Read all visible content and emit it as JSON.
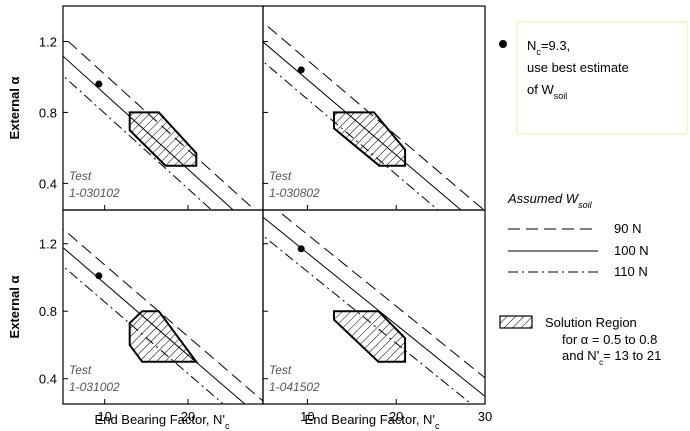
{
  "chart_data": {
    "type": "scatter",
    "axes": {
      "xlabel": "End Bearing Factor, N'",
      "xlabel_sub": "c",
      "ylabel": "External α",
      "xlim": [
        5,
        30
      ],
      "ylim": [
        0.25,
        1.4
      ],
      "xticks": [
        10,
        20,
        30
      ],
      "yticks": [
        0.4,
        0.8,
        1.2
      ],
      "xtick_labels": [
        "10",
        "20",
        "30"
      ],
      "ytick_labels": [
        "0.4",
        "0.8",
        "1.2"
      ]
    },
    "panels": [
      {
        "test_label_1": "Test",
        "test_label_2": "1-030102",
        "point": {
          "x": 9.3,
          "y": 0.96
        },
        "lines": {
          "w90": {
            "intercept": 1.44,
            "slope": -0.0425
          },
          "w100": {
            "intercept": 1.33,
            "slope": -0.0425
          },
          "w110": {
            "intercept": 1.22,
            "slope": -0.0425
          }
        },
        "region": [
          [
            13,
            0.8
          ],
          [
            16.5,
            0.8
          ],
          [
            21,
            0.57
          ],
          [
            21,
            0.5
          ],
          [
            17.3,
            0.5
          ],
          [
            13,
            0.7
          ]
        ]
      },
      {
        "test_label_1": "Test",
        "test_label_2": "1-030802",
        "point": {
          "x": 9.3,
          "y": 1.04
        },
        "lines": {
          "w90": {
            "intercept": 1.52,
            "slope": -0.0425
          },
          "w100": {
            "intercept": 1.41,
            "slope": -0.0425
          },
          "w110": {
            "intercept": 1.3,
            "slope": -0.0425
          }
        },
        "region": [
          [
            13,
            0.8
          ],
          [
            17.5,
            0.8
          ],
          [
            21,
            0.59
          ],
          [
            21,
            0.5
          ],
          [
            18.1,
            0.5
          ],
          [
            13,
            0.71
          ]
        ]
      },
      {
        "test_label_1": "Test",
        "test_label_2": "1-031002",
        "point": {
          "x": 9.3,
          "y": 1.01
        },
        "lines": {
          "w90": {
            "intercept": 1.5,
            "slope": -0.0425
          },
          "w100": {
            "intercept": 1.39,
            "slope": -0.0425
          },
          "w110": {
            "intercept": 1.28,
            "slope": -0.0425
          }
        },
        "region": [
          [
            13,
            0.73
          ],
          [
            13,
            0.6
          ],
          [
            14.5,
            0.5
          ],
          [
            21,
            0.5
          ],
          [
            16.5,
            0.8
          ],
          [
            14.5,
            0.8
          ]
        ]
      },
      {
        "test_label_1": "Test",
        "test_label_2": "1-041502",
        "point": {
          "x": 9.3,
          "y": 1.17
        },
        "lines": {
          "w90": {
            "intercept": 1.68,
            "slope": -0.0425
          },
          "w100": {
            "intercept": 1.57,
            "slope": -0.0425
          },
          "w110": {
            "intercept": 1.46,
            "slope": -0.0425
          }
        },
        "region": [
          [
            13,
            0.8
          ],
          [
            18,
            0.8
          ],
          [
            21,
            0.64
          ],
          [
            21,
            0.5
          ],
          [
            18,
            0.5
          ],
          [
            13,
            0.75
          ]
        ]
      }
    ],
    "legend": {
      "point_label_line1": "N",
      "point_label_sub": "c",
      "point_label_value": "=9.3,",
      "point_label_line2": "use best estimate",
      "point_label_line3": "of W",
      "point_label_sub2": "soil",
      "lines_title": "Assumed W",
      "lines_title_sub": "soil",
      "line_90": "90 N",
      "line_100": "100 N",
      "line_110": "110 N",
      "region_title": "Solution Region",
      "region_line2": "for α = 0.5 to 0.8",
      "region_line3_a": "and N'",
      "region_line3_sub": "c",
      "region_line3_b": "= 13 to 21"
    },
    "colors": {
      "legend_box_border": "#f2f2cc",
      "test_label": "#555555"
    }
  }
}
